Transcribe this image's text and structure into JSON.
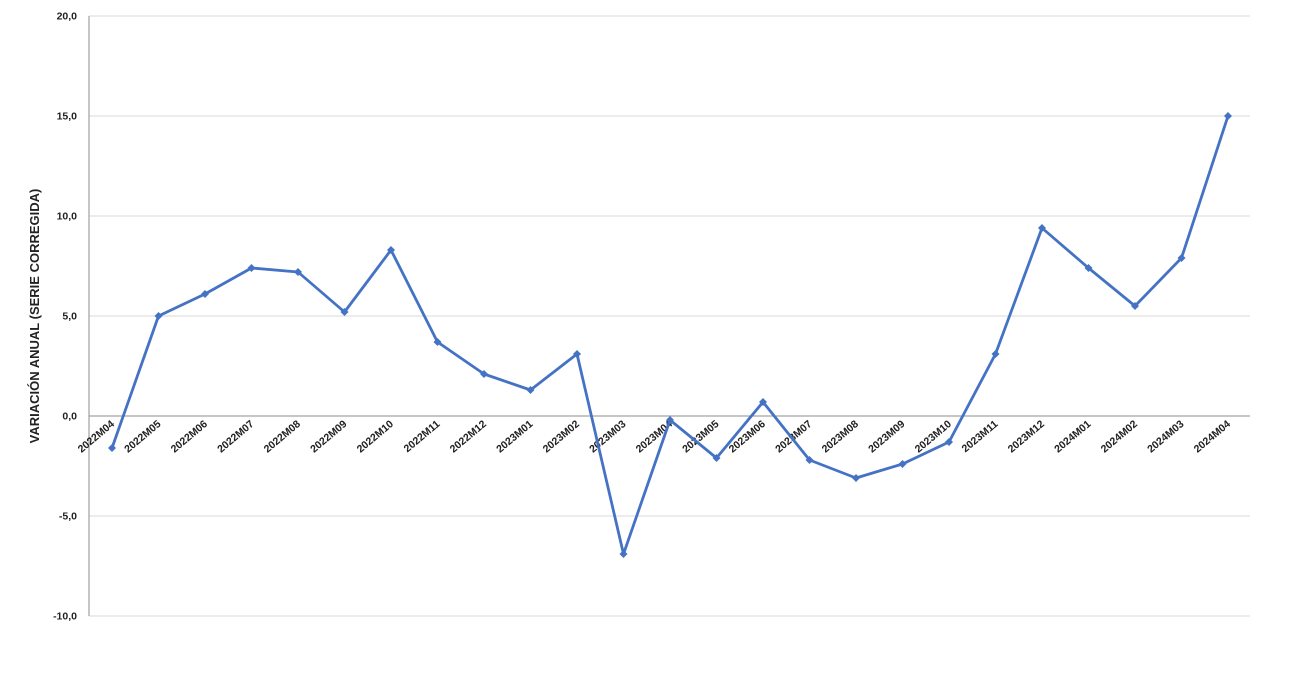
{
  "chart_data": {
    "type": "line",
    "title": "",
    "xlabel": "",
    "ylabel": "VARIACIÓN ANUAL (SERIE CORREGIDA)",
    "ylim": [
      -10,
      20
    ],
    "yticks": [
      -10,
      -5,
      0,
      5,
      10,
      15,
      20
    ],
    "ytick_labels": [
      "-10,0",
      "-5,0",
      "0,0",
      "5,0",
      "10,0",
      "15,0",
      "20,0"
    ],
    "grid": "horizontal",
    "legend": "none",
    "color": "#4472C4",
    "marker": "diamond",
    "categories": [
      "2022M04",
      "2022M05",
      "2022M06",
      "2022M07",
      "2022M08",
      "2022M09",
      "2022M10",
      "2022M11",
      "2022M12",
      "2023M01",
      "2023M02",
      "2023M03",
      "2023M04",
      "2023M05",
      "2023M06",
      "2023M07",
      "2023M08",
      "2023M09",
      "2023M10",
      "2023M11",
      "2023M12",
      "2024M01",
      "2024M02",
      "2024M03",
      "2024M04"
    ],
    "values": [
      -1.6,
      5.0,
      6.1,
      7.4,
      7.2,
      5.2,
      8.3,
      3.7,
      2.1,
      1.3,
      3.1,
      -6.9,
      -0.2,
      -2.1,
      0.7,
      -2.2,
      -3.1,
      -2.4,
      -1.3,
      3.1,
      9.4,
      7.4,
      5.5,
      7.9,
      15.0
    ]
  }
}
